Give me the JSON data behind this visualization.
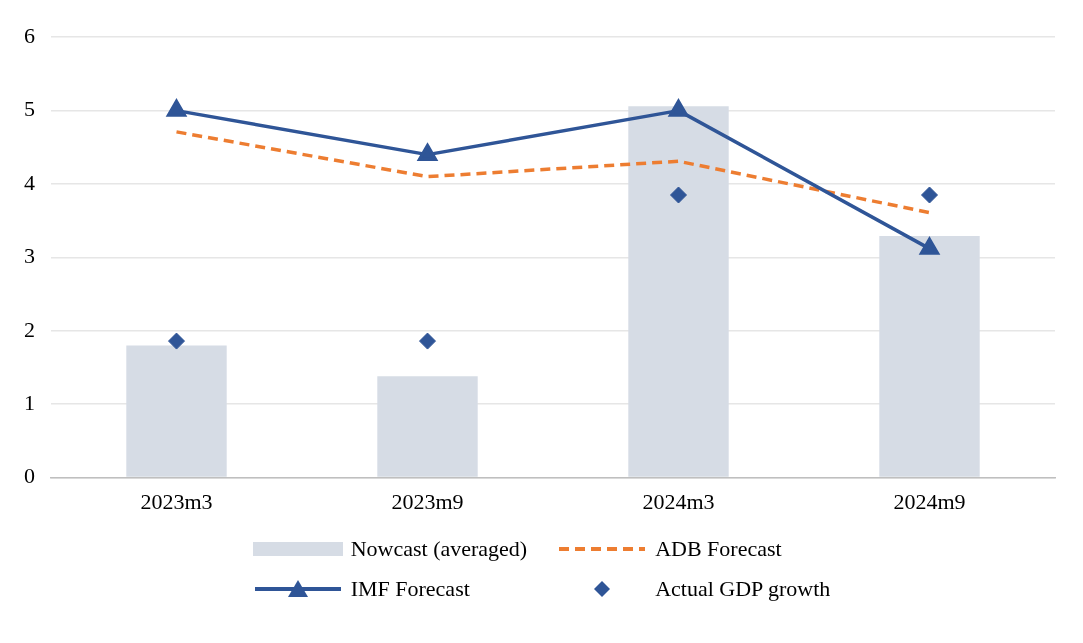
{
  "chart_data": {
    "type": "bar",
    "categories": [
      "2023m3",
      "2023m9",
      "2024m3",
      "2024m9"
    ],
    "ylim": [
      0,
      6
    ],
    "yticks": [
      0,
      1,
      2,
      3,
      4,
      5,
      6
    ],
    "grid": "y",
    "legend": "bottom",
    "series": [
      {
        "name": "Nowcast (averaged)",
        "color": "#d6dce5",
        "values": [
          1.8,
          1.38,
          5.06,
          3.29
        ]
      },
      {
        "name": "ADB Forecast",
        "type": "line",
        "color": "#ed7d31",
        "line_style": "dashed",
        "marker": "none",
        "values": [
          4.71,
          4.1,
          4.31,
          3.61
        ]
      },
      {
        "name": "IMF Forecast",
        "type": "line",
        "color": "#2f5597",
        "line_style": "solid",
        "marker": "triangle",
        "values": [
          5.0,
          4.4,
          5.0,
          3.12
        ]
      },
      {
        "name": "Actual GDP growth",
        "type": "scatter",
        "color": "#2f5597",
        "marker": "diamond",
        "x": [
          "2023m3",
          "2023m9",
          "2024m3",
          "2024m9"
        ],
        "values": [
          1.86,
          1.86,
          3.85,
          3.85
        ]
      }
    ]
  }
}
